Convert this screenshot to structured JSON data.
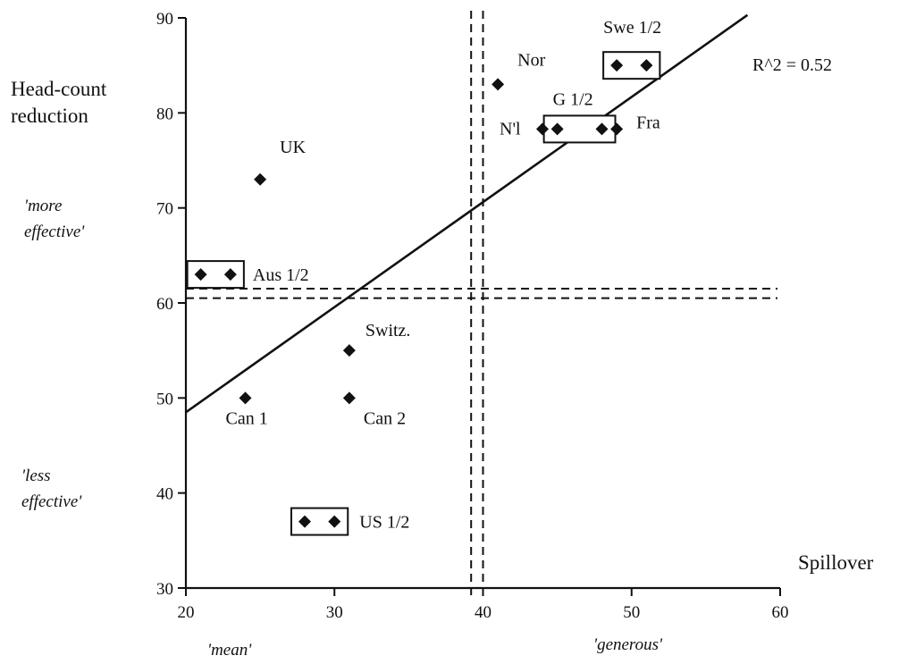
{
  "chart_data": {
    "type": "scatter",
    "x_axis": {
      "label": "Spillover",
      "range": [
        20,
        60
      ],
      "ticks": [
        "20",
        "30",
        "40",
        "50",
        "60"
      ],
      "low_note": "'mean'",
      "high_note": "'generous'"
    },
    "y_axis": {
      "label_line1": "Head-count",
      "label_line2": "reduction",
      "range": [
        30,
        90
      ],
      "ticks": [
        "30",
        "40",
        "50",
        "60",
        "70",
        "80",
        "90"
      ],
      "high_note_line1": "'more",
      "high_note_line2": "effective'",
      "low_note_line1": "'less",
      "low_note_line2": "effective'"
    },
    "points": [
      {
        "x": 21,
        "y": 63
      },
      {
        "x": 23,
        "y": 63
      },
      {
        "x": 25,
        "y": 73
      },
      {
        "x": 24,
        "y": 50
      },
      {
        "x": 31,
        "y": 55
      },
      {
        "x": 31,
        "y": 50
      },
      {
        "x": 28,
        "y": 37
      },
      {
        "x": 30,
        "y": 37
      },
      {
        "x": 41,
        "y": 83
      },
      {
        "x": 44,
        "y": 78.3
      },
      {
        "x": 45,
        "y": 78.3
      },
      {
        "x": 48,
        "y": 78.3
      },
      {
        "x": 49,
        "y": 78.3
      },
      {
        "x": 49,
        "y": 85
      },
      {
        "x": 51,
        "y": 85
      }
    ],
    "labels": [
      {
        "text": "UK",
        "x": 25,
        "y": 73,
        "dx": 22,
        "dy": -30,
        "anchor": "start"
      },
      {
        "text": "Aus 1/2",
        "x": 23,
        "y": 63,
        "dx": 25,
        "dy": 7,
        "anchor": "start"
      },
      {
        "text": "Switz.",
        "x": 31,
        "y": 55,
        "dx": 18,
        "dy": -16,
        "anchor": "start"
      },
      {
        "text": "Can 1",
        "x": 24,
        "y": 50,
        "dx": -22,
        "dy": 29,
        "anchor": "start"
      },
      {
        "text": "Can 2",
        "x": 31,
        "y": 50,
        "dx": 16,
        "dy": 29,
        "anchor": "start"
      },
      {
        "text": "US 1/2",
        "x": 30,
        "y": 37,
        "dx": 28,
        "dy": 7,
        "anchor": "start"
      },
      {
        "text": "Nor",
        "x": 41,
        "y": 83,
        "dx": 22,
        "dy": -21,
        "anchor": "start"
      },
      {
        "text": "G 1/2",
        "x": 45,
        "y": 78.3,
        "dx": -5,
        "dy": -27,
        "anchor": "start"
      },
      {
        "text": "N'l",
        "x": 44,
        "y": 78.3,
        "dx": -48,
        "dy": 6,
        "anchor": "start"
      },
      {
        "text": "Fra",
        "x": 49,
        "y": 78.3,
        "dx": 22,
        "dy": -1,
        "anchor": "start"
      },
      {
        "text": "Swe 1/2",
        "x": 49,
        "y": 85,
        "dx": -15,
        "dy": -36,
        "anchor": "start"
      }
    ],
    "group_boxes": [
      {
        "x1": 21,
        "x2": 23,
        "y": 63
      },
      {
        "x1": 28,
        "x2": 30,
        "y": 37
      },
      {
        "x1": 45,
        "x2": 48,
        "y": 78.3
      },
      {
        "x1": 49,
        "x2": 51,
        "y": 85
      }
    ],
    "regression_line": {
      "x": [
        20,
        57.8
      ],
      "y": [
        48.5,
        90.3
      ]
    },
    "r_squared_label": "R^2 = 0.52",
    "threshold_lines": {
      "vertical": [
        39.2,
        40
      ],
      "horizontal": [
        60.5,
        61.5
      ]
    }
  }
}
